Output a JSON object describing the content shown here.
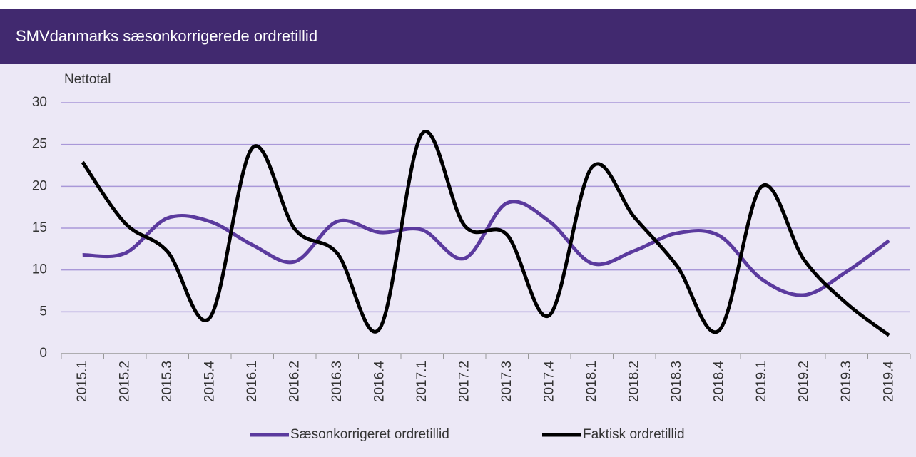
{
  "chart_data": {
    "type": "line",
    "title": "SMVdanmarks sæsonkorrigerede ordretillid",
    "ylabel": "Nettotal",
    "categories": [
      "2015.1",
      "2015.2",
      "2015.3",
      "2015.4",
      "2016.1",
      "2016.2",
      "2016.3",
      "2016.4",
      "2017.1",
      "2017.2",
      "2017.3",
      "2017.4",
      "2018.1",
      "2018.2",
      "2018.3",
      "2018.4",
      "2019.1",
      "2019.2",
      "2019.3",
      "2019.4"
    ],
    "series": [
      {
        "name": "Sæsonkorrigeret ordretillid",
        "color": "#5b3a9e",
        "values": [
          11.8,
          12,
          16.2,
          15.8,
          13,
          11,
          15.8,
          14.5,
          14.8,
          11.4,
          18,
          15.8,
          10.8,
          12.3,
          14.4,
          14.1,
          8.9,
          7,
          9.8,
          13.5
        ]
      },
      {
        "name": "Faktisk ordretillid",
        "color": "#000000",
        "values": [
          22.9,
          15.6,
          12.2,
          4.3,
          24.6,
          14.9,
          12,
          3,
          26.3,
          15.3,
          14.2,
          4.6,
          22.3,
          16.3,
          10.5,
          2.8,
          20,
          11.2,
          6,
          2.2
        ]
      }
    ],
    "ylim": [
      0,
      30
    ],
    "yticks": [
      0,
      5,
      10,
      15,
      20,
      25,
      30
    ],
    "grid": true,
    "smooth": true,
    "legend": "bottom"
  }
}
